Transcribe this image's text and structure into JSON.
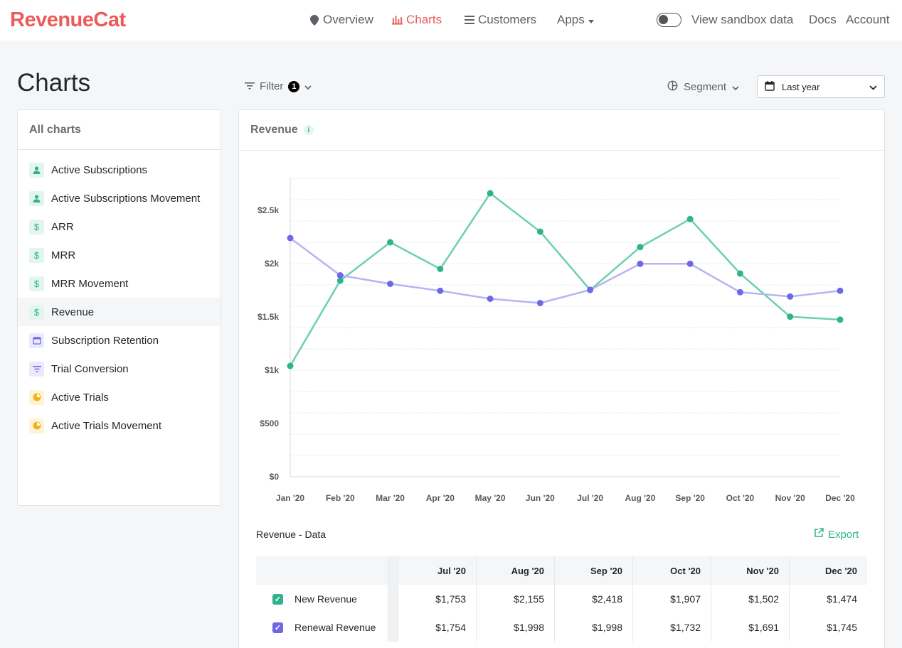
{
  "brand": {
    "logo": "RevenueCat",
    "accent": "#ec5a5a"
  },
  "nav": {
    "items": [
      {
        "label": "Overview",
        "icon": "map-pin-icon"
      },
      {
        "label": "Charts",
        "icon": "bar-chart-icon",
        "active": true
      },
      {
        "label": "Customers",
        "icon": "list-icon"
      },
      {
        "label": "Apps",
        "icon": "caret-down-icon"
      }
    ],
    "sandbox_label": "View sandbox data",
    "docs": "Docs",
    "account": "Account"
  },
  "page": {
    "title": "Charts",
    "filter_label": "Filter",
    "filter_count": "1",
    "segment_label": "Segment",
    "date_range": "Last year"
  },
  "sidebar": {
    "title": "All charts",
    "items": [
      {
        "label": "Active Subscriptions",
        "icon": "person-icon",
        "tone": "green"
      },
      {
        "label": "Active Subscriptions Movement",
        "icon": "person-icon",
        "tone": "green"
      },
      {
        "label": "ARR",
        "icon": "dollar-icon",
        "tone": "green"
      },
      {
        "label": "MRR",
        "icon": "dollar-icon",
        "tone": "green"
      },
      {
        "label": "MRR Movement",
        "icon": "dollar-icon",
        "tone": "green"
      },
      {
        "label": "Revenue",
        "icon": "dollar-icon",
        "tone": "green",
        "selected": true
      },
      {
        "label": "Subscription Retention",
        "icon": "calendar-icon",
        "tone": "purple"
      },
      {
        "label": "Trial Conversion",
        "icon": "funnel-icon",
        "tone": "purple"
      },
      {
        "label": "Active Trials",
        "icon": "trial-icon",
        "tone": "yellow"
      },
      {
        "label": "Active Trials Movement",
        "icon": "trial-icon",
        "tone": "yellow"
      }
    ]
  },
  "chart_panel": {
    "title": "Revenue",
    "data_title": "Revenue - Data",
    "export_label": "Export"
  },
  "chart_data": {
    "type": "line",
    "title": "Revenue",
    "x": [
      "Jan '20",
      "Feb '20",
      "Mar '20",
      "Apr '20",
      "May '20",
      "Jun '20",
      "Jul '20",
      "Aug '20",
      "Sep '20",
      "Oct '20",
      "Nov '20",
      "Dec '20"
    ],
    "ylim": [
      0,
      2800
    ],
    "yticks": [
      0,
      500,
      1000,
      1500,
      2000,
      2500
    ],
    "ytick_labels": [
      "$0",
      "$500",
      "$1k",
      "$1.5k",
      "$2k",
      "$2.5k"
    ],
    "grid": true,
    "series": [
      {
        "name": "New Revenue",
        "color": "#6cd0b0",
        "marker": "#2fb28d",
        "values": [
          1040,
          1840,
          2200,
          1950,
          2660,
          2300,
          1753,
          2155,
          2418,
          1907,
          1502,
          1474
        ]
      },
      {
        "name": "Renewal Revenue",
        "color": "#b8b3f2",
        "marker": "#6e68e8",
        "values": [
          2240,
          1890,
          1810,
          1745,
          1670,
          1630,
          1754,
          1998,
          1998,
          1732,
          1691,
          1745
        ]
      }
    ]
  },
  "table": {
    "columns": [
      "Jul '20",
      "Aug '20",
      "Sep '20",
      "Oct '20",
      "Nov '20",
      "Dec '20"
    ],
    "rows": [
      {
        "label": "New Revenue",
        "color": "#2fb28d",
        "values": [
          "$1,753",
          "$2,155",
          "$2,418",
          "$1,907",
          "$1,502",
          "$1,474"
        ]
      },
      {
        "label": "Renewal Revenue",
        "color": "#6e68e8",
        "values": [
          "$1,754",
          "$1,998",
          "$1,998",
          "$1,732",
          "$1,691",
          "$1,745"
        ]
      }
    ]
  }
}
